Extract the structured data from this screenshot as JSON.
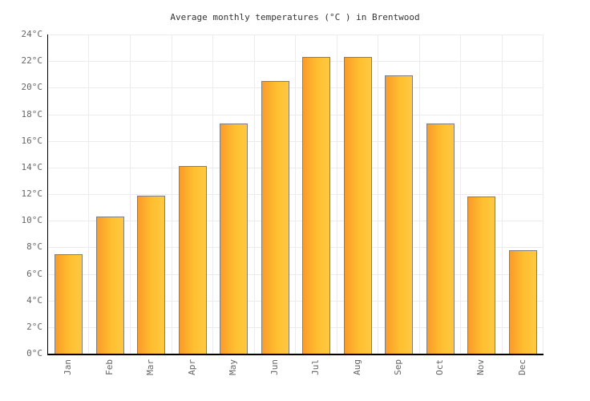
{
  "chart_data": {
    "type": "bar",
    "title": "Average monthly temperatures (°C ) in Brentwood",
    "categories": [
      "Jan",
      "Feb",
      "Mar",
      "Apr",
      "May",
      "Jun",
      "Jul",
      "Aug",
      "Sep",
      "Oct",
      "Nov",
      "Dec"
    ],
    "values": [
      7.5,
      10.3,
      11.9,
      14.1,
      17.3,
      20.5,
      22.3,
      22.3,
      20.9,
      17.3,
      11.8,
      7.8
    ],
    "xlabel": "",
    "ylabel": "",
    "ylim": [
      0,
      24
    ],
    "ytick_step": 2,
    "ytick_suffix": "°C",
    "grid": true,
    "legend": "none",
    "colors": {
      "bar_gradient_start": "#f99b2a",
      "bar_gradient_end": "#ffc842",
      "bar_border": "#7e7e7e",
      "gridline": "#ececec",
      "axis": "#000000",
      "tick_label": "#666666",
      "title": "#333333",
      "background": "#ffffff"
    }
  }
}
